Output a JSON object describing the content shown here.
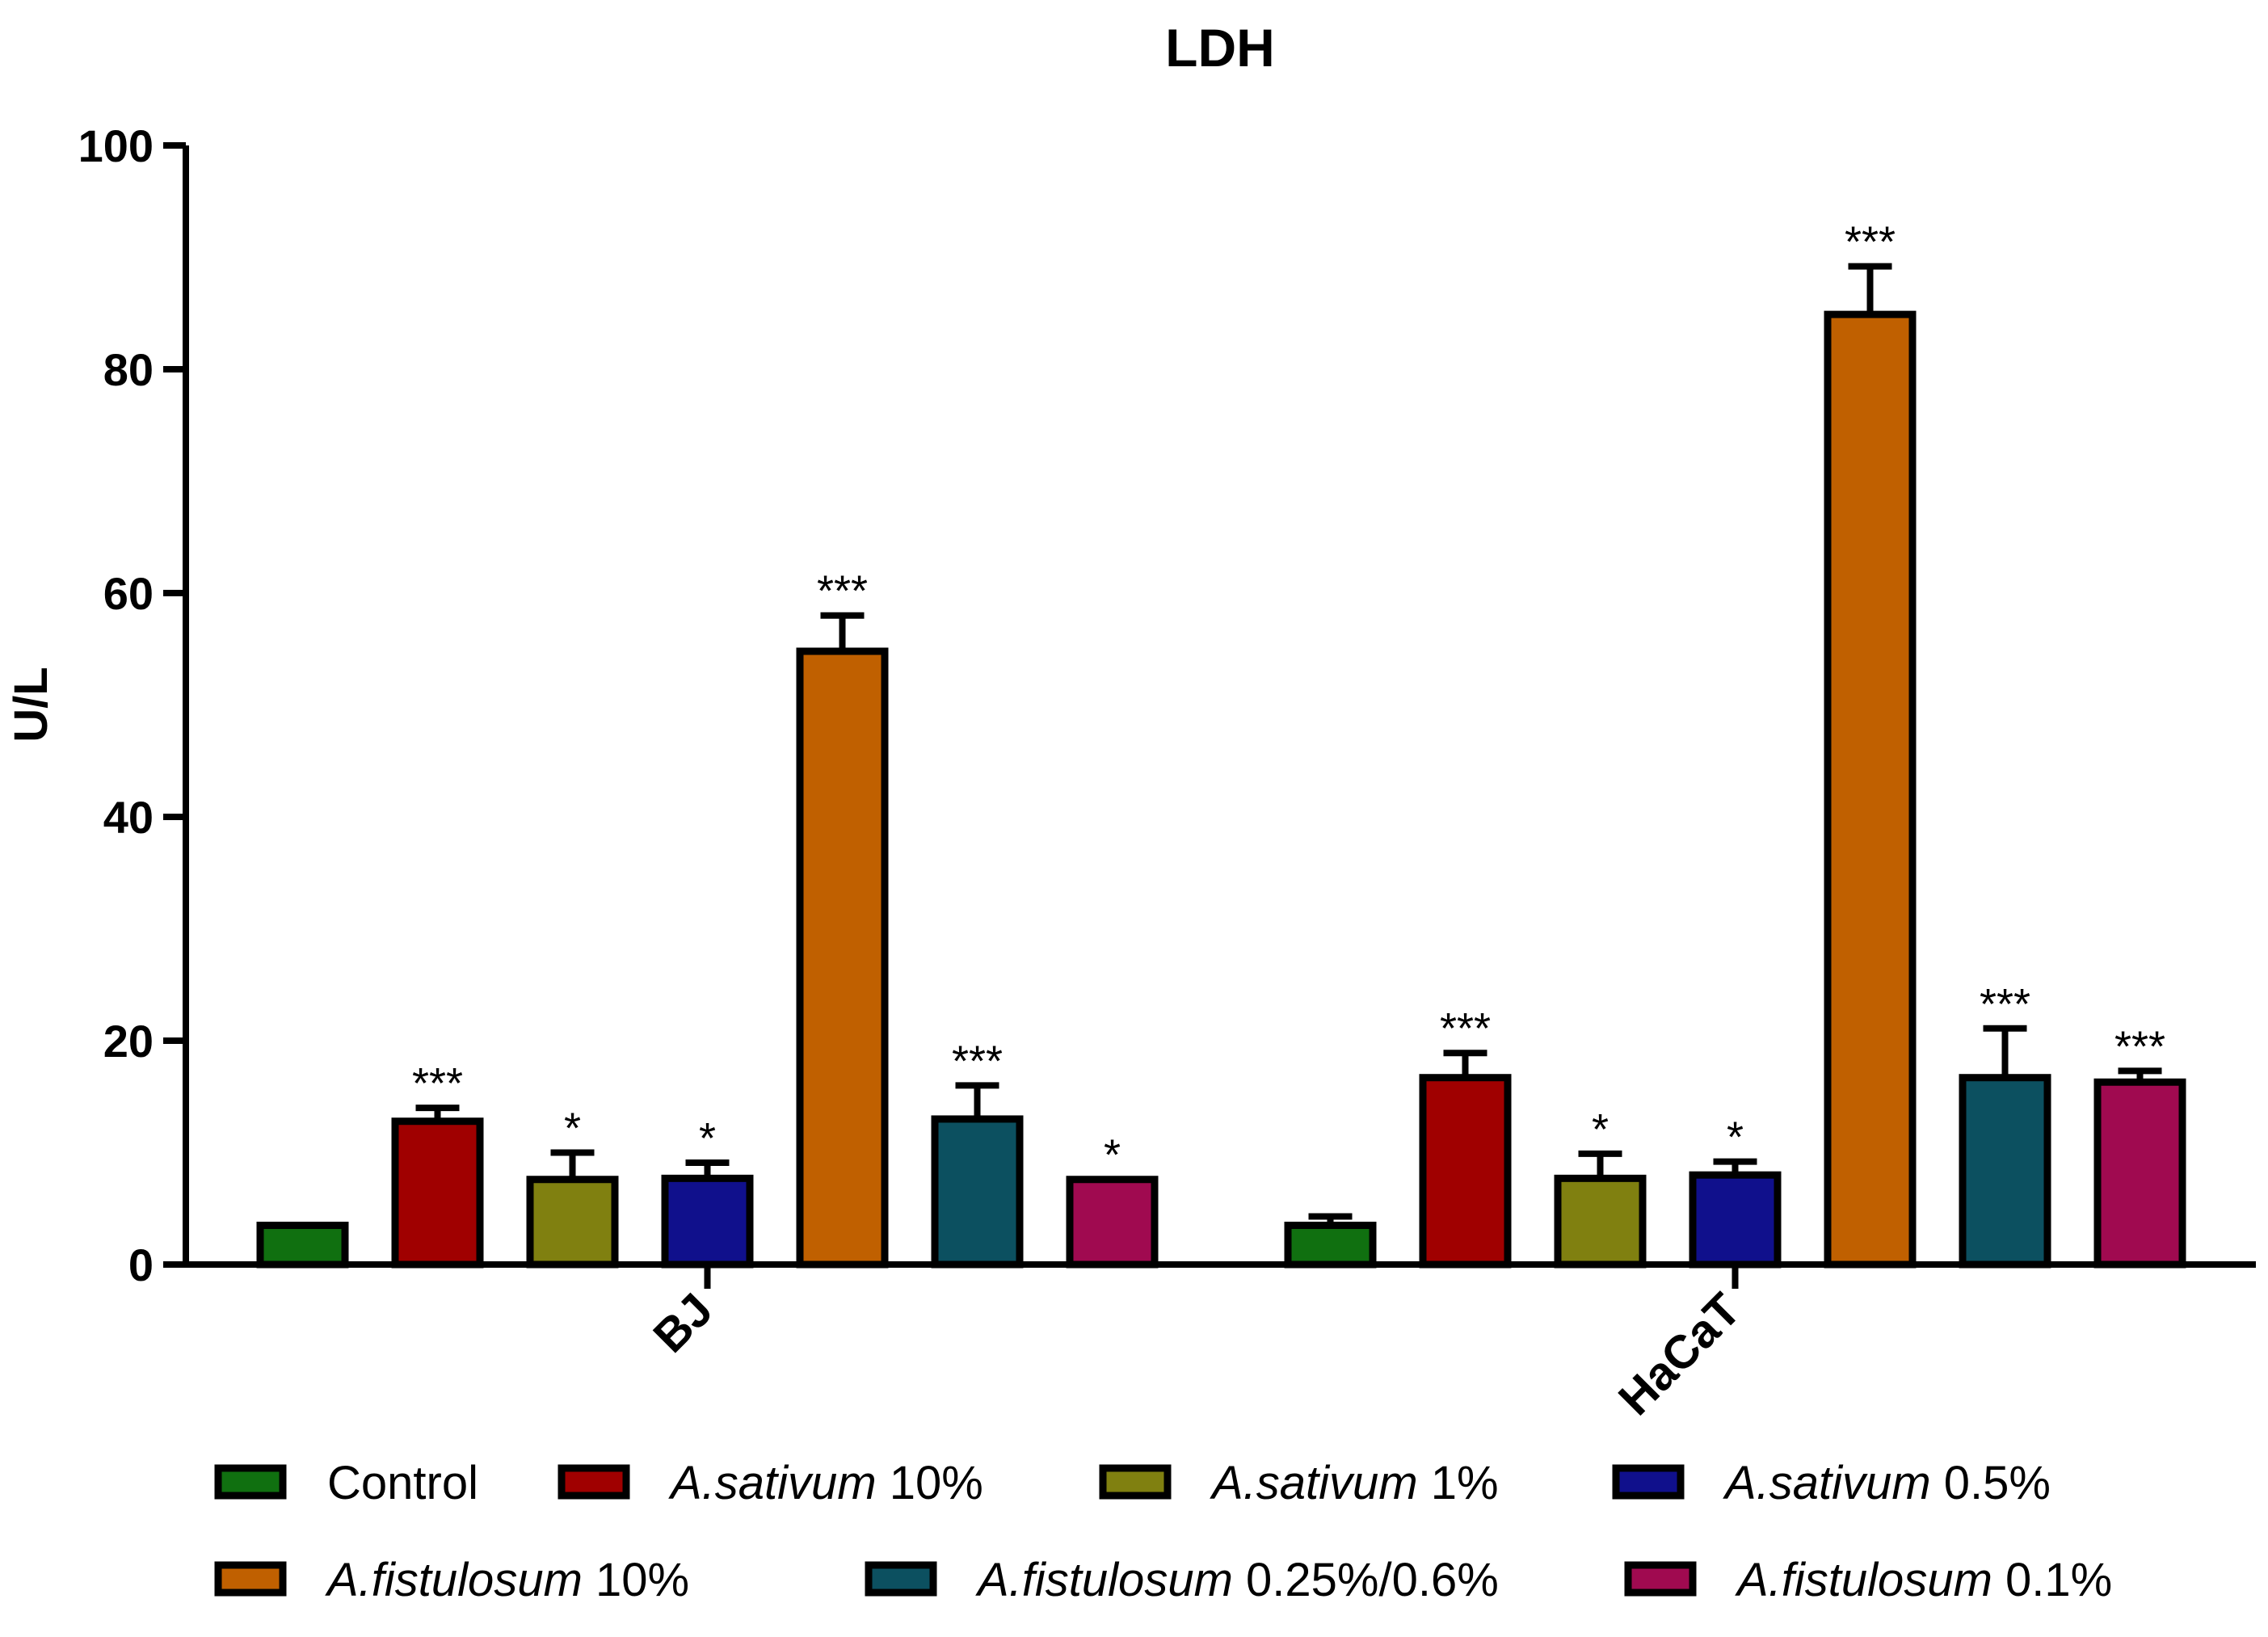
{
  "chart_data": {
    "type": "bar",
    "title": "LDH",
    "ylabel": "U/L",
    "xlabel": "",
    "ylim": [
      0,
      100
    ],
    "yticks": [
      0,
      20,
      40,
      60,
      80,
      100
    ],
    "grid": false,
    "legend_position": "bottom",
    "categories": [
      "BJ",
      "HaCaT"
    ],
    "series": [
      {
        "name": "Control",
        "italic": "",
        "suffix": "Control",
        "color": "#107010",
        "values": [
          3.5,
          3.5
        ],
        "errors": [
          0,
          0.8
        ],
        "significance": [
          "",
          ""
        ]
      },
      {
        "name": "A.sativum 10%",
        "italic": "A.sativum",
        "suffix": " 10%",
        "color": "#a00000",
        "values": [
          12.8,
          16.7
        ],
        "errors": [
          1.2,
          2.2
        ],
        "significance": [
          "***",
          "***"
        ]
      },
      {
        "name": "A.sativum 1%",
        "italic": "A.sativum",
        "suffix": " 1%",
        "color": "#808010",
        "values": [
          7.6,
          7.7
        ],
        "errors": [
          2.4,
          2.2
        ],
        "significance": [
          "*",
          "*"
        ]
      },
      {
        "name": "A.sativum 0.5%",
        "italic": "A.sativum",
        "suffix": " 0.5%",
        "color": "#10108c",
        "values": [
          7.7,
          8.0
        ],
        "errors": [
          1.4,
          1.2
        ],
        "significance": [
          "*",
          "*"
        ]
      },
      {
        "name": "A.fistulosum 10%",
        "italic": "A.fistulosum",
        "suffix": " 10%",
        "color": "#c06000",
        "values": [
          54.8,
          84.9
        ],
        "errors": [
          3.2,
          4.3
        ],
        "significance": [
          "***",
          "***"
        ]
      },
      {
        "name": "A.fistulosum 0.25%/0.6%",
        "italic": "A.fistulosum",
        "suffix": " 0.25%/0.6%",
        "color": "#0c5060",
        "values": [
          13.0,
          16.7
        ],
        "errors": [
          3.0,
          4.4
        ],
        "significance": [
          "***",
          "***"
        ]
      },
      {
        "name": "A.fistulosum 0.1%",
        "italic": "A.fistulosum",
        "suffix": " 0.1%",
        "color": "#a00a50",
        "values": [
          7.6,
          16.3
        ],
        "errors": [
          0,
          1.0
        ],
        "significance": [
          "*",
          "***"
        ]
      }
    ]
  }
}
